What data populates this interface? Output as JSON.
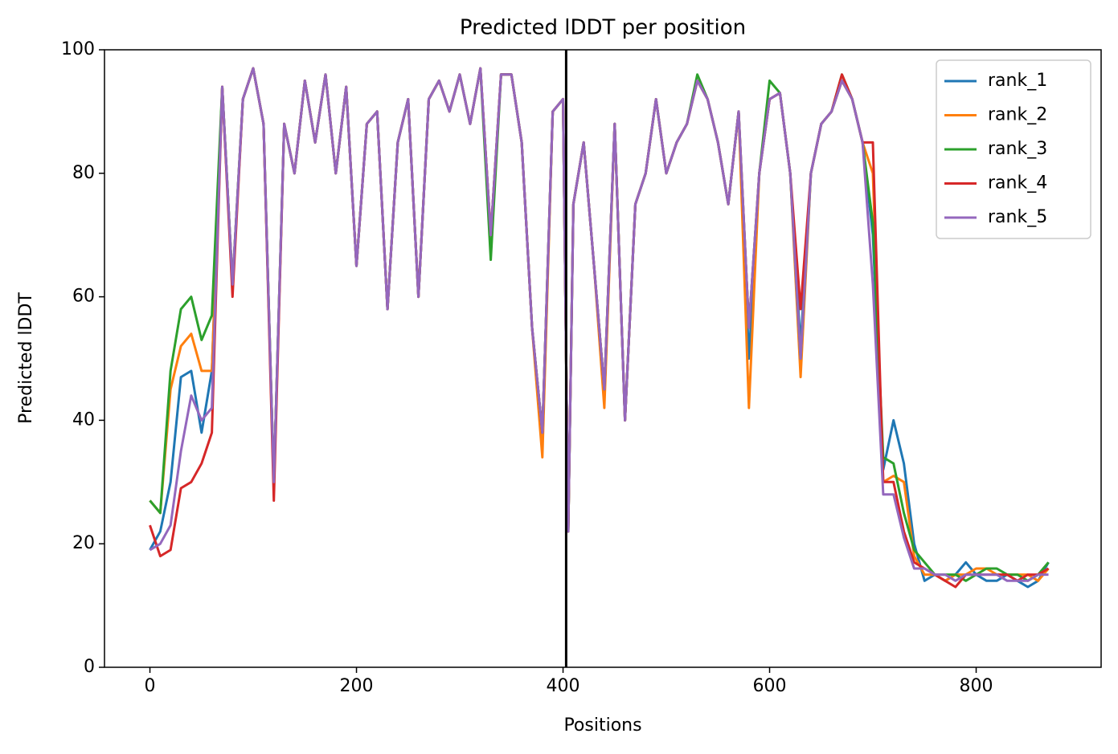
{
  "chart_data": {
    "type": "line",
    "title": "Predicted lDDT per position",
    "xlabel": "Positions",
    "ylabel": "Predicted lDDT",
    "x": [
      0,
      10,
      20,
      30,
      40,
      50,
      60,
      70,
      80,
      90,
      100,
      110,
      120,
      130,
      140,
      150,
      160,
      170,
      180,
      190,
      200,
      210,
      220,
      230,
      240,
      250,
      260,
      270,
      280,
      290,
      300,
      310,
      320,
      330,
      340,
      350,
      360,
      370,
      380,
      390,
      400,
      405,
      410,
      420,
      430,
      440,
      450,
      460,
      470,
      480,
      490,
      500,
      510,
      520,
      530,
      540,
      550,
      560,
      570,
      580,
      590,
      600,
      610,
      620,
      630,
      640,
      650,
      660,
      670,
      680,
      690,
      700,
      710,
      720,
      730,
      740,
      750,
      760,
      770,
      780,
      790,
      800,
      810,
      820,
      830,
      840,
      850,
      860,
      870
    ],
    "series": [
      {
        "name": "rank_1",
        "color": "#1f77b4",
        "values": [
          19,
          22,
          30,
          47,
          48,
          38,
          48,
          94,
          62,
          92,
          97,
          88,
          30,
          88,
          80,
          95,
          85,
          96,
          80,
          94,
          65,
          88,
          90,
          58,
          85,
          92,
          60,
          92,
          95,
          90,
          96,
          88,
          97,
          70,
          96,
          96,
          85,
          55,
          38,
          90,
          92,
          22,
          75,
          85,
          65,
          45,
          88,
          40,
          75,
          80,
          92,
          80,
          85,
          88,
          95,
          92,
          85,
          75,
          90,
          50,
          80,
          92,
          93,
          80,
          52,
          80,
          88,
          90,
          95,
          92,
          85,
          70,
          32,
          40,
          33,
          20,
          14,
          15,
          14,
          15,
          17,
          15,
          14,
          14,
          15,
          14,
          13,
          14,
          17
        ]
      },
      {
        "name": "rank_2",
        "color": "#ff7f0e",
        "values": [
          27,
          25,
          45,
          52,
          54,
          48,
          48,
          94,
          62,
          92,
          97,
          88,
          30,
          88,
          80,
          95,
          85,
          96,
          80,
          94,
          65,
          88,
          90,
          58,
          85,
          92,
          60,
          92,
          95,
          90,
          96,
          88,
          97,
          70,
          96,
          96,
          85,
          55,
          34,
          90,
          92,
          22,
          75,
          85,
          65,
          42,
          88,
          40,
          75,
          80,
          92,
          80,
          85,
          88,
          95,
          92,
          85,
          75,
          90,
          42,
          80,
          92,
          93,
          80,
          47,
          80,
          88,
          90,
          95,
          92,
          85,
          80,
          30,
          31,
          30,
          18,
          15,
          15,
          14,
          15,
          15,
          16,
          16,
          15,
          15,
          15,
          15,
          14,
          16
        ]
      },
      {
        "name": "rank_3",
        "color": "#2ca02c",
        "values": [
          27,
          25,
          48,
          58,
          60,
          53,
          57,
          94,
          62,
          92,
          97,
          88,
          30,
          88,
          80,
          95,
          85,
          96,
          80,
          94,
          65,
          88,
          90,
          58,
          85,
          92,
          60,
          92,
          95,
          90,
          96,
          88,
          97,
          66,
          96,
          96,
          85,
          55,
          38,
          90,
          92,
          22,
          75,
          85,
          65,
          45,
          88,
          40,
          75,
          80,
          92,
          80,
          85,
          88,
          96,
          92,
          85,
          75,
          90,
          55,
          80,
          95,
          93,
          80,
          50,
          80,
          88,
          90,
          96,
          92,
          85,
          72,
          34,
          33,
          25,
          19,
          17,
          15,
          15,
          15,
          14,
          15,
          16,
          16,
          15,
          15,
          14,
          15,
          17
        ]
      },
      {
        "name": "rank_4",
        "color": "#d62728",
        "values": [
          23,
          18,
          19,
          29,
          30,
          33,
          38,
          94,
          60,
          92,
          97,
          88,
          27,
          88,
          80,
          95,
          85,
          96,
          80,
          94,
          65,
          88,
          90,
          58,
          85,
          92,
          60,
          92,
          95,
          90,
          96,
          88,
          97,
          70,
          96,
          96,
          85,
          55,
          38,
          90,
          92,
          22,
          75,
          85,
          65,
          45,
          88,
          40,
          75,
          80,
          92,
          80,
          85,
          88,
          95,
          92,
          85,
          75,
          90,
          55,
          80,
          92,
          93,
          80,
          58,
          80,
          88,
          90,
          96,
          92,
          85,
          85,
          30,
          30,
          22,
          17,
          16,
          15,
          14,
          13,
          15,
          15,
          15,
          15,
          15,
          14,
          15,
          15,
          16
        ]
      },
      {
        "name": "rank_5",
        "color": "#9467bd",
        "values": [
          19,
          20,
          23,
          35,
          44,
          40,
          42,
          94,
          62,
          92,
          97,
          88,
          30,
          88,
          80,
          95,
          85,
          96,
          80,
          94,
          65,
          88,
          90,
          58,
          85,
          92,
          60,
          92,
          95,
          90,
          96,
          88,
          97,
          70,
          96,
          96,
          85,
          55,
          38,
          90,
          92,
          22,
          75,
          85,
          65,
          45,
          88,
          40,
          75,
          80,
          92,
          80,
          85,
          88,
          95,
          92,
          85,
          75,
          90,
          55,
          80,
          92,
          93,
          80,
          50,
          80,
          88,
          90,
          95,
          92,
          85,
          62,
          28,
          28,
          21,
          16,
          16,
          15,
          15,
          14,
          15,
          15,
          15,
          15,
          14,
          14,
          14,
          15,
          15
        ]
      }
    ],
    "vline_x": 403,
    "xlim": [
      -44,
      921
    ],
    "ylim": [
      0,
      100
    ],
    "xticks": [
      0,
      200,
      400,
      600,
      800
    ],
    "yticks": [
      0,
      20,
      40,
      60,
      80,
      100
    ],
    "legend": "upper right"
  }
}
